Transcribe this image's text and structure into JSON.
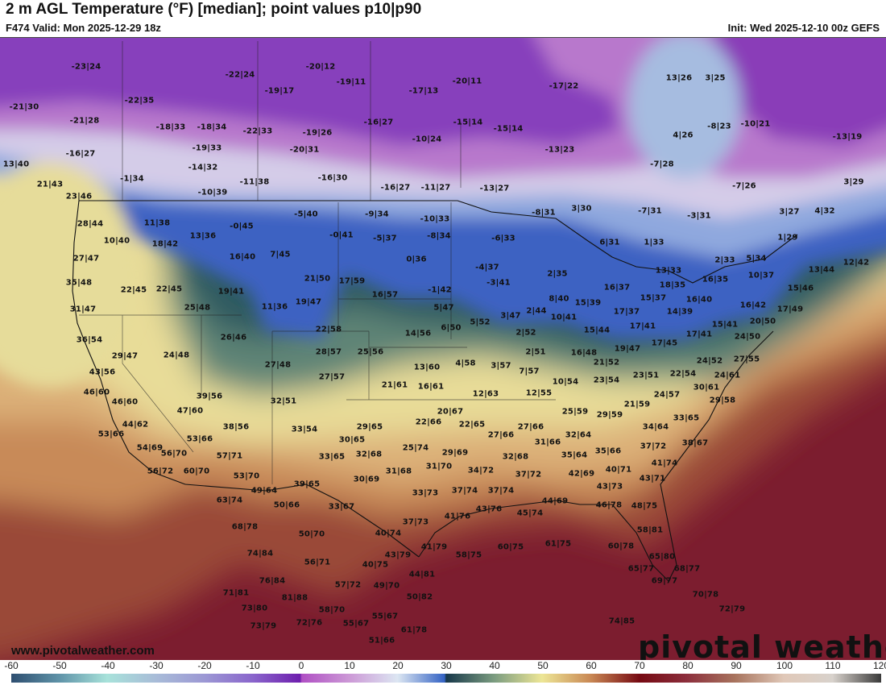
{
  "header": {
    "title": "2 m AGL Temperature (°F) [median]; point values p10|p90",
    "valid": "F474 Valid: Mon 2025-12-29 18z",
    "init": "Init: Wed 2025-12-10 00z GEFS"
  },
  "watermark": "www.pivotalweather.com",
  "logo": "pivotal weather",
  "colorbar": {
    "unit": "°F",
    "ticks": [
      "-60",
      "-50",
      "-40",
      "-30",
      "-20",
      "-10",
      "0",
      "10",
      "20",
      "30",
      "40",
      "50",
      "60",
      "70",
      "80",
      "90",
      "100",
      "110",
      "120"
    ]
  },
  "point_values": [
    "-23|24",
    "-22|24",
    "-20|12",
    "-19|11",
    "-17|13",
    "-20|11",
    "-17|22",
    "13|26",
    "3|25",
    "-21|30",
    "-22|35",
    "-19|17",
    "-21|28",
    "-18|33",
    "-18|34",
    "-22|33",
    "-19|26",
    "-16|27",
    "-10|24",
    "-15|14",
    "-15|14",
    "-13|23",
    "-8|23",
    "-10|21",
    "4|26",
    "-13|19",
    "-16|27",
    "-19|33",
    "-20|31",
    "-14|32",
    "-16|30",
    "-7|28",
    "13|40",
    "-1|34",
    "-10|39",
    "-11|38",
    "-16|27",
    "-11|27",
    "-13|27",
    "-7|26",
    "3|29",
    "21|43",
    "23|46",
    "-5|40",
    "-9|34",
    "-10|33",
    "-8|34",
    "-0|41",
    "-5|37",
    "-6|33",
    "-8|31",
    "3|30",
    "-7|31",
    "-3|31",
    "3|27",
    "4|32",
    "28|44",
    "11|38",
    "-0|45",
    "13|36",
    "10|40",
    "18|42",
    "16|40",
    "7|45",
    "0|36",
    "6|31",
    "1|33",
    "1|29",
    "27|47",
    "13|33",
    "2|33",
    "5|34",
    "10|37",
    "13|44",
    "12|42",
    "-4|37",
    "-3|41",
    "2|35",
    "15|46",
    "18|35",
    "16|35",
    "16|40",
    "16|37",
    "15|39",
    "8|40",
    "15|37",
    "17|37",
    "14|39",
    "16|42",
    "17|49",
    "20|50",
    "17|41",
    "10|41",
    "2|44",
    "3|47",
    "5|52",
    "6|50",
    "5|47",
    "-1|42",
    "16|57",
    "17|59",
    "21|50",
    "11|36",
    "19|47",
    "35|48",
    "22|45",
    "22|45",
    "19|41",
    "25|48",
    "31|47",
    "22|58",
    "14|56",
    "2|52",
    "15|44",
    "15|41",
    "24|50",
    "17|41",
    "17|45",
    "26|46",
    "36|54",
    "28|57",
    "25|56",
    "29|47",
    "24|48",
    "2|51",
    "16|48",
    "19|47",
    "24|52",
    "27|55",
    "22|54",
    "24|61",
    "27|48",
    "13|60",
    "4|58",
    "3|57",
    "7|57",
    "21|52",
    "23|54",
    "23|51",
    "10|54",
    "43|56",
    "27|57",
    "21|61",
    "16|61",
    "30|61",
    "24|57",
    "12|63",
    "12|55",
    "46|60",
    "29|58",
    "39|56",
    "32|51",
    "46|60",
    "21|59",
    "25|59",
    "29|59",
    "20|67",
    "47|60",
    "33|65",
    "22|66",
    "22|65",
    "34|64",
    "44|62",
    "38|56",
    "33|54",
    "29|65",
    "27|66",
    "32|64",
    "38|67",
    "27|66",
    "53|66",
    "30|65",
    "53|66",
    "31|66",
    "54|69",
    "25|74",
    "29|69",
    "37|72",
    "35|66",
    "35|64",
    "56|70",
    "33|65",
    "32|68",
    "32|68",
    "41|74",
    "57|71",
    "31|70",
    "56|72",
    "60|70",
    "34|72",
    "40|71",
    "42|69",
    "37|72",
    "31|68",
    "53|70",
    "30|69",
    "43|71",
    "39|65",
    "49|64",
    "33|73",
    "37|74",
    "37|74",
    "43|73",
    "63|74",
    "50|66",
    "33|67",
    "44|69",
    "46|78",
    "48|75",
    "45|74",
    "43|76",
    "41|76",
    "37|73",
    "68|78",
    "40|74",
    "58|81",
    "50|70",
    "43|79",
    "41|79",
    "58|75",
    "60|75",
    "61|75",
    "60|78",
    "74|84",
    "65|80",
    "56|71",
    "40|75",
    "65|77",
    "68|77",
    "76|84",
    "57|72",
    "49|70",
    "44|81",
    "69|77",
    "71|81",
    "81|88",
    "50|82",
    "70|78",
    "73|80",
    "58|70",
    "55|67",
    "72|79",
    "72|76",
    "55|67",
    "61|78",
    "74|85",
    "73|79",
    "51|66"
  ]
}
